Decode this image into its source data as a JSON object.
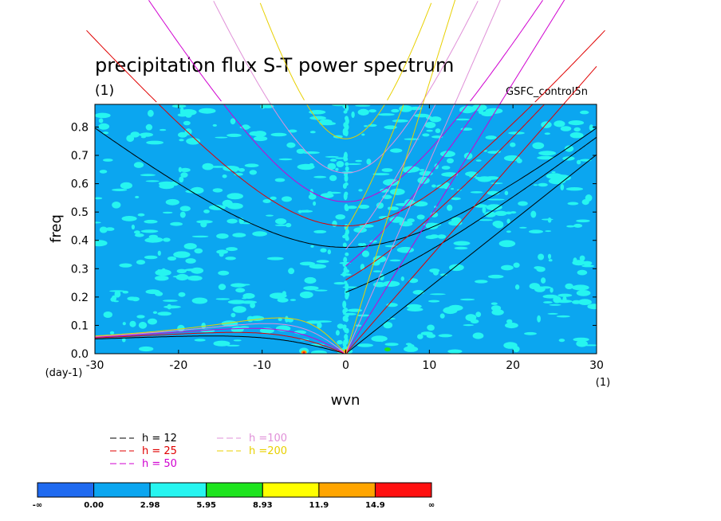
{
  "chart_data": {
    "type": "heatmap",
    "title": "precipitation flux S-T power spectrum",
    "subtitle": "(1)",
    "label_right": "GSFC_control5n",
    "xlabel": "wvn",
    "ylabel": "freq",
    "xunit_label": "(1)",
    "yunit_label": "(day-1)",
    "xlim": [
      -30,
      30
    ],
    "ylim": [
      0,
      0.88
    ],
    "xticks": [
      -30,
      -20,
      -10,
      0,
      10,
      20,
      30
    ],
    "xtick_labels": [
      "-30",
      "-20",
      "-10",
      "0",
      "10",
      "20",
      "30"
    ],
    "yticks": [
      0.0,
      0.1,
      0.2,
      0.3,
      0.4,
      0.5,
      0.6,
      0.7,
      0.8
    ],
    "ytick_labels": [
      "0.0",
      "0.1",
      "0.2",
      "0.3",
      "0.4",
      "0.5",
      "0.6",
      "0.7",
      "0.8"
    ],
    "background_level": "0.00 to 2.98",
    "dispersion_curves": [
      {
        "label": "h = 12",
        "h": 12,
        "color": "#000000"
      },
      {
        "label": "h = 25",
        "h": 25,
        "color": "#e00000"
      },
      {
        "label": "h = 50",
        "h": 50,
        "color": "#d000d0"
      },
      {
        "label": "h =100",
        "h": 100,
        "color": "#e090d8"
      },
      {
        "label": "h =200",
        "h": 200,
        "color": "#e8d000"
      }
    ],
    "colorbar": {
      "labels": [
        "-∞",
        "0.00",
        "2.98",
        "5.95",
        "8.93",
        "11.9",
        "14.9",
        "∞"
      ],
      "colors": [
        "#1f6af0",
        "#0ba6f0",
        "#26f5f0",
        "#1ee41e",
        "#ffff00",
        "#ffa500",
        "#ff1010"
      ]
    }
  }
}
